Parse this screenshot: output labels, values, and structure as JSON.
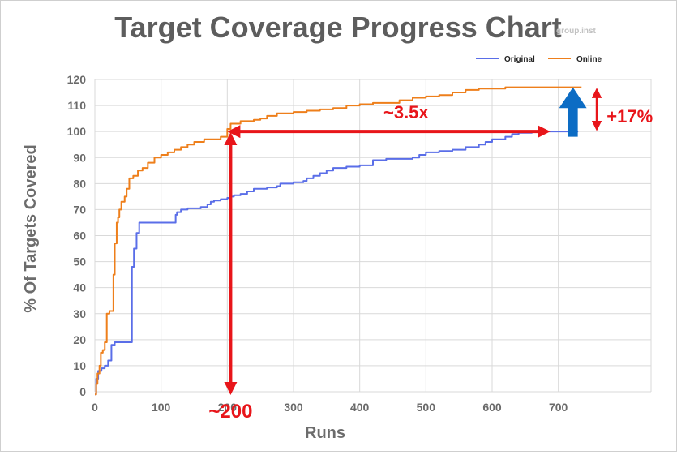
{
  "chart_data": {
    "type": "line",
    "title": "Target Coverage Progress Chart",
    "watermark": "group.inst",
    "xlabel": "Runs",
    "ylabel": "% Of Targets Covered",
    "xlim": [
      0,
      840
    ],
    "ylim": [
      0,
      120
    ],
    "x_ticks": [
      0,
      100,
      200,
      300,
      400,
      500,
      600,
      700
    ],
    "y_ticks": [
      0,
      10,
      20,
      30,
      40,
      50,
      60,
      70,
      80,
      90,
      100,
      110,
      120
    ],
    "grid": true,
    "legend_position": "top-right",
    "series": [
      {
        "name": "Original",
        "color": "#5a6ee8",
        "points": [
          [
            0,
            -1
          ],
          [
            2,
            5
          ],
          [
            5,
            8
          ],
          [
            10,
            9
          ],
          [
            15,
            10
          ],
          [
            20,
            12
          ],
          [
            25,
            18
          ],
          [
            30,
            19
          ],
          [
            35,
            19
          ],
          [
            40,
            19
          ],
          [
            55,
            19
          ],
          [
            56,
            48
          ],
          [
            58,
            48
          ],
          [
            59,
            55
          ],
          [
            62,
            55
          ],
          [
            63,
            61
          ],
          [
            66,
            61
          ],
          [
            67,
            65
          ],
          [
            80,
            65
          ],
          [
            100,
            65
          ],
          [
            121,
            65
          ],
          [
            122,
            68
          ],
          [
            124,
            69
          ],
          [
            128,
            69
          ],
          [
            130,
            70
          ],
          [
            135,
            70
          ],
          [
            140,
            70.5
          ],
          [
            150,
            70.5
          ],
          [
            160,
            71
          ],
          [
            170,
            72
          ],
          [
            175,
            73
          ],
          [
            180,
            73.5
          ],
          [
            190,
            74
          ],
          [
            200,
            74.5
          ],
          [
            205,
            75
          ],
          [
            210,
            75.5
          ],
          [
            220,
            76
          ],
          [
            230,
            77
          ],
          [
            240,
            78
          ],
          [
            260,
            78.5
          ],
          [
            275,
            79
          ],
          [
            280,
            80
          ],
          [
            300,
            80.5
          ],
          [
            315,
            81
          ],
          [
            320,
            82
          ],
          [
            330,
            83
          ],
          [
            340,
            84
          ],
          [
            350,
            85
          ],
          [
            360,
            86
          ],
          [
            380,
            86.5
          ],
          [
            400,
            87
          ],
          [
            420,
            89
          ],
          [
            440,
            89.5
          ],
          [
            460,
            89.5
          ],
          [
            480,
            90
          ],
          [
            490,
            91
          ],
          [
            500,
            92
          ],
          [
            520,
            92.5
          ],
          [
            540,
            93
          ],
          [
            560,
            94
          ],
          [
            580,
            95
          ],
          [
            590,
            96
          ],
          [
            600,
            97
          ],
          [
            620,
            98
          ],
          [
            630,
            99
          ],
          [
            640,
            99.5
          ],
          [
            660,
            100
          ],
          [
            730,
            100
          ]
        ]
      },
      {
        "name": "Online",
        "color": "#ee7f1b",
        "points": [
          [
            0,
            -1
          ],
          [
            2,
            3
          ],
          [
            4,
            7
          ],
          [
            7,
            10
          ],
          [
            9,
            15
          ],
          [
            12,
            16
          ],
          [
            15,
            19
          ],
          [
            18,
            30
          ],
          [
            22,
            31
          ],
          [
            26,
            31
          ],
          [
            28,
            45
          ],
          [
            30,
            57
          ],
          [
            32,
            57
          ],
          [
            33,
            65
          ],
          [
            35,
            67
          ],
          [
            37,
            70
          ],
          [
            40,
            73
          ],
          [
            45,
            75
          ],
          [
            48,
            78
          ],
          [
            52,
            82
          ],
          [
            58,
            83
          ],
          [
            65,
            85
          ],
          [
            72,
            86
          ],
          [
            80,
            88
          ],
          [
            90,
            90
          ],
          [
            100,
            91
          ],
          [
            110,
            92
          ],
          [
            120,
            93
          ],
          [
            130,
            94
          ],
          [
            140,
            95
          ],
          [
            150,
            96
          ],
          [
            165,
            97
          ],
          [
            190,
            98
          ],
          [
            200,
            101
          ],
          [
            205,
            103
          ],
          [
            215,
            103
          ],
          [
            220,
            104
          ],
          [
            240,
            104.5
          ],
          [
            250,
            105
          ],
          [
            260,
            106
          ],
          [
            275,
            107
          ],
          [
            300,
            107.5
          ],
          [
            320,
            108
          ],
          [
            340,
            108.5
          ],
          [
            360,
            109
          ],
          [
            380,
            110
          ],
          [
            400,
            110.5
          ],
          [
            420,
            111
          ],
          [
            440,
            111
          ],
          [
            460,
            112
          ],
          [
            480,
            113
          ],
          [
            500,
            113.5
          ],
          [
            520,
            114
          ],
          [
            540,
            115
          ],
          [
            560,
            116
          ],
          [
            580,
            116.5
          ],
          [
            600,
            116.5
          ],
          [
            620,
            117
          ],
          [
            640,
            117
          ],
          [
            660,
            117
          ],
          [
            680,
            117
          ],
          [
            735,
            117
          ]
        ]
      }
    ],
    "annotations": [
      {
        "label": "~3.5x",
        "color": "#e8151a"
      },
      {
        "label": "+17%",
        "color": "#e8151a"
      },
      {
        "label": "~200",
        "color": "#e8151a"
      }
    ],
    "arrow_color_up": "#0c6cc4"
  }
}
